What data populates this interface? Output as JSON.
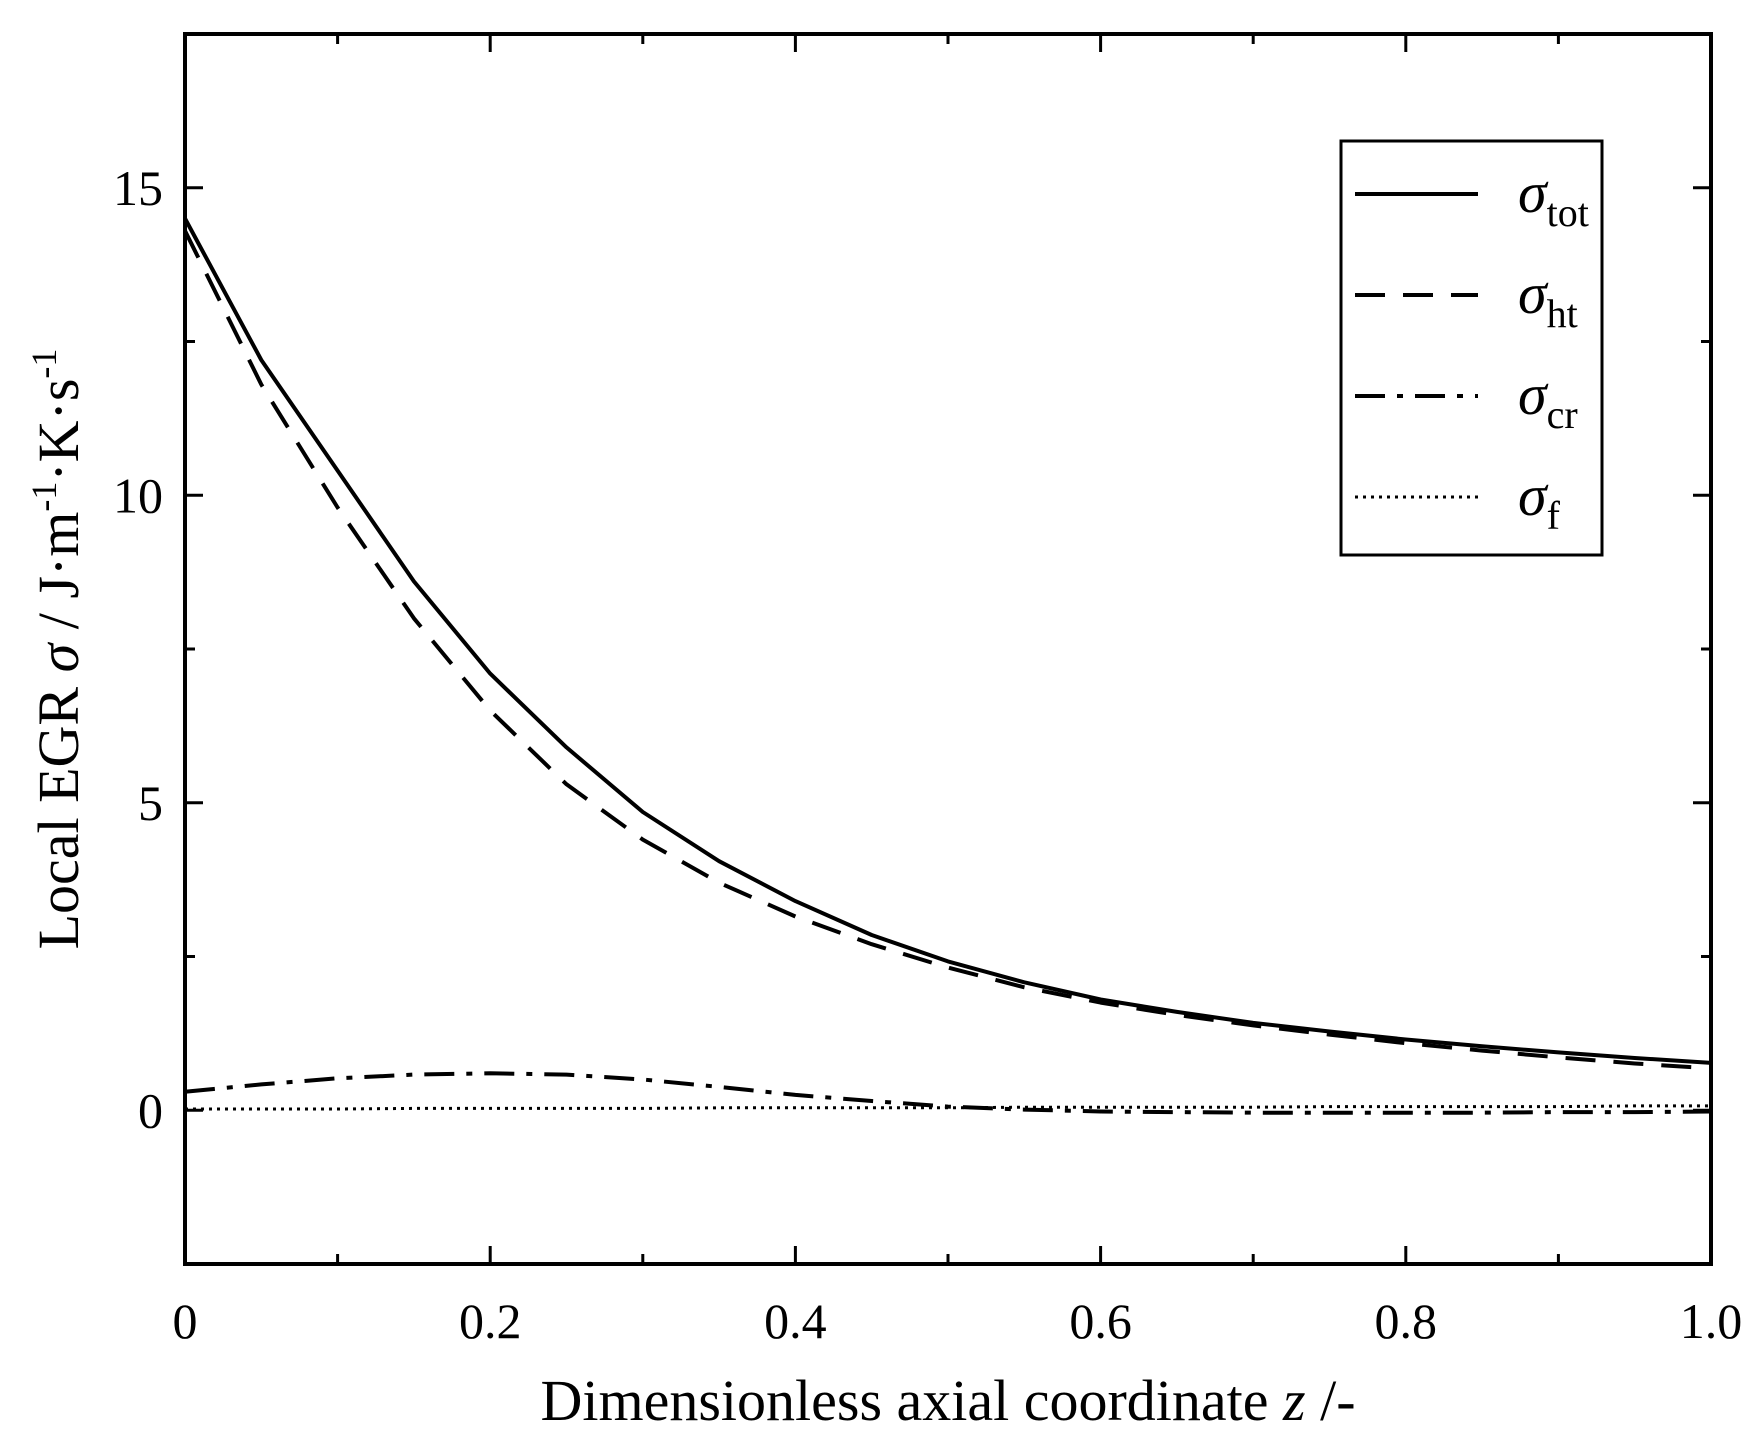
{
  "chart_data": {
    "type": "line",
    "title": "",
    "xlabel": {
      "text": "Dimensionless axial coordinate ",
      "var": "z",
      "unit": " /-"
    },
    "ylabel": {
      "prefix": "Local EGR  ",
      "symbol": "σ",
      "unit": " / J·m",
      "sup1": "-1",
      "mid": "·K·s",
      "sup2": "-1"
    },
    "xlim": [
      0,
      1.0
    ],
    "ylim": [
      -2.5,
      17.5
    ],
    "xticks": [
      0,
      0.2,
      0.4,
      0.6,
      0.8,
      1.0
    ],
    "xtick_labels": [
      "0",
      "0.2",
      "0.4",
      "0.6",
      "0.8",
      "1.0"
    ],
    "yticks": [
      0,
      5,
      10,
      15
    ],
    "ytick_labels": [
      "0",
      "5",
      "10",
      "15"
    ],
    "x": [
      0,
      0.05,
      0.1,
      0.15,
      0.2,
      0.25,
      0.3,
      0.35,
      0.4,
      0.45,
      0.5,
      0.55,
      0.6,
      0.65,
      0.7,
      0.75,
      0.8,
      0.85,
      0.9,
      0.95,
      1.0
    ],
    "series": [
      {
        "name": "tot",
        "symbol": "σ",
        "sub": "tot",
        "dash": "none",
        "values": [
          14.5,
          12.2,
          10.4,
          8.6,
          7.1,
          5.9,
          4.85,
          4.05,
          3.4,
          2.85,
          2.42,
          2.08,
          1.8,
          1.6,
          1.42,
          1.28,
          1.15,
          1.04,
          0.94,
          0.85,
          0.77
        ]
      },
      {
        "name": "ht",
        "symbol": "σ",
        "sub": "ht",
        "dash": "30,18",
        "values": [
          14.3,
          11.8,
          9.8,
          8.0,
          6.5,
          5.3,
          4.4,
          3.7,
          3.15,
          2.7,
          2.32,
          2.0,
          1.75,
          1.55,
          1.38,
          1.23,
          1.09,
          0.97,
          0.86,
          0.76,
          0.68
        ]
      },
      {
        "name": "cr",
        "symbol": "σ",
        "sub": "cr",
        "dash": "30,12,6,12",
        "values": [
          0.3,
          0.42,
          0.52,
          0.58,
          0.6,
          0.58,
          0.5,
          0.38,
          0.25,
          0.15,
          0.06,
          0.01,
          -0.02,
          -0.03,
          -0.04,
          -0.04,
          -0.04,
          -0.04,
          -0.03,
          -0.03,
          -0.02
        ]
      },
      {
        "name": "f",
        "symbol": "σ",
        "sub": "f",
        "dash": "3,5",
        "values": [
          0.02,
          0.02,
          0.02,
          0.03,
          0.03,
          0.03,
          0.03,
          0.04,
          0.04,
          0.04,
          0.04,
          0.05,
          0.05,
          0.05,
          0.05,
          0.06,
          0.06,
          0.06,
          0.06,
          0.07,
          0.07
        ]
      }
    ],
    "legend": {
      "position": "top-right"
    },
    "grid": false
  }
}
